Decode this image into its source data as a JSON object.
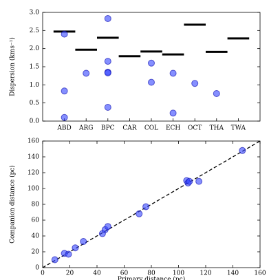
{
  "chart_data": [
    {
      "type": "strip",
      "categories": [
        "ABD",
        "ARG",
        "BPC",
        "CAR",
        "COL",
        "ECH",
        "OCT",
        "THA",
        "TWA"
      ],
      "values": [
        2.47,
        1.97,
        2.3,
        1.79,
        1.92,
        1.84,
        2.66,
        1.91,
        2.28
      ],
      "points": [
        [
          2.4,
          0.83,
          0.1
        ],
        [
          1.32
        ],
        [
          2.83,
          1.65,
          1.35,
          1.33,
          0.38
        ],
        [],
        [
          1.6,
          1.07
        ],
        [
          1.32,
          0.22
        ],
        [
          1.04
        ],
        [
          0.76
        ],
        []
      ],
      "ylabel": "Dispersion (kms⁻¹)",
      "ylim": [
        0,
        3
      ],
      "yticks": [
        {
          "value": 0,
          "label": "0.0"
        },
        {
          "value": 0.5,
          "label": "0.5"
        },
        {
          "value": 1,
          "label": "1.0"
        },
        {
          "value": 1.5,
          "label": "1.5"
        },
        {
          "value": 2,
          "label": "2.0"
        },
        {
          "value": 2.5,
          "label": "2.5"
        },
        {
          "value": 3,
          "label": "3.0"
        }
      ],
      "color": "#3344ff",
      "line_color": "#000000"
    },
    {
      "type": "scatter",
      "x": [
        9,
        16,
        19,
        24,
        30,
        44,
        46,
        48,
        71,
        76,
        106,
        107,
        108,
        115,
        147
      ],
      "y": [
        10,
        18,
        17,
        25,
        33,
        43,
        48,
        52,
        68,
        77,
        110,
        107,
        109,
        109,
        148
      ],
      "xlabel": "Primary distance (pc)",
      "ylabel": "Companion distance (pc)",
      "xlim": [
        0,
        160
      ],
      "ylim": [
        0,
        160
      ],
      "xticks": [
        0,
        20,
        40,
        60,
        80,
        100,
        120,
        140,
        160
      ],
      "yticks": [
        0,
        20,
        40,
        60,
        80,
        100,
        120,
        140,
        160
      ],
      "diagonal": true,
      "color": "#3344ff"
    }
  ]
}
